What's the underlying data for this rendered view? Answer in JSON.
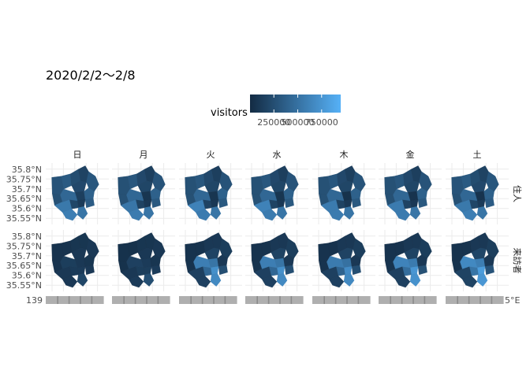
{
  "chart_data": {
    "type": "heatmap",
    "subtype": "faceted choropleth map",
    "title": "2020/2/2～2/8",
    "legend": {
      "title": "visitors",
      "position": "top",
      "breaks": [
        250000,
        500000,
        750000
      ],
      "break_labels": [
        "250000",
        "500000",
        "750000"
      ],
      "range": [
        0,
        950000
      ],
      "low_color": "#132B43",
      "high_color": "#56B1F7"
    },
    "columns": [
      "日",
      "月",
      "火",
      "水",
      "木",
      "金",
      "土"
    ],
    "rows": [
      "住人",
      "来訪者"
    ],
    "y_ticks": [
      "35.8°N",
      "35.75°N",
      "35.7°N",
      "35.65°N",
      "35.6°N",
      "35.55°N"
    ],
    "x_tick_first": "139",
    "x_tick_last": "5°E",
    "grid": true,
    "panels": {
      "住人": {
        "日": [
          0.3,
          0.35,
          0.25,
          0.18,
          0.32,
          0.22,
          0.15,
          0.4,
          0.12,
          0.2,
          0.28,
          0.58,
          0.45,
          0.36,
          0.55,
          0.62
        ],
        "月": [
          0.28,
          0.33,
          0.22,
          0.15,
          0.3,
          0.2,
          0.08,
          0.4,
          0.1,
          0.18,
          0.28,
          0.56,
          0.45,
          0.34,
          0.55,
          0.6
        ],
        "火": [
          0.28,
          0.33,
          0.22,
          0.15,
          0.3,
          0.2,
          0.08,
          0.4,
          0.1,
          0.18,
          0.28,
          0.65,
          0.45,
          0.34,
          0.55,
          0.6
        ],
        "水": [
          0.28,
          0.33,
          0.22,
          0.15,
          0.3,
          0.2,
          0.08,
          0.4,
          0.1,
          0.18,
          0.28,
          0.65,
          0.45,
          0.34,
          0.55,
          0.6
        ],
        "木": [
          0.28,
          0.33,
          0.22,
          0.15,
          0.3,
          0.2,
          0.05,
          0.4,
          0.1,
          0.18,
          0.28,
          0.6,
          0.45,
          0.34,
          0.55,
          0.6
        ],
        "金": [
          0.28,
          0.33,
          0.22,
          0.15,
          0.3,
          0.2,
          0.06,
          0.4,
          0.1,
          0.18,
          0.28,
          0.6,
          0.45,
          0.34,
          0.55,
          0.6
        ],
        "土": [
          0.3,
          0.35,
          0.25,
          0.18,
          0.32,
          0.22,
          0.06,
          0.4,
          0.12,
          0.2,
          0.28,
          0.58,
          0.45,
          0.36,
          0.55,
          0.62
        ]
      },
      "来訪者": {
        "日": [
          0.06,
          0.06,
          0.08,
          0.08,
          0.1,
          0.1,
          0.1,
          0.08,
          0.12,
          0.12,
          0.06,
          0.1,
          0.14,
          0.1,
          0.2,
          0.1
        ],
        "月": [
          0.05,
          0.05,
          0.08,
          0.08,
          0.1,
          0.1,
          0.12,
          0.08,
          0.14,
          0.14,
          0.05,
          0.1,
          0.16,
          0.12,
          0.26,
          0.12
        ],
        "火": [
          0.06,
          0.06,
          0.1,
          0.1,
          0.14,
          0.18,
          0.55,
          0.1,
          0.75,
          0.45,
          0.06,
          0.16,
          0.62,
          0.26,
          0.7,
          0.16
        ],
        "水": [
          0.06,
          0.06,
          0.1,
          0.1,
          0.14,
          0.18,
          0.55,
          0.1,
          0.75,
          0.45,
          0.06,
          0.16,
          0.62,
          0.26,
          0.7,
          0.16
        ],
        "木": [
          0.06,
          0.06,
          0.1,
          0.1,
          0.14,
          0.18,
          0.52,
          0.1,
          0.72,
          0.42,
          0.06,
          0.16,
          0.6,
          0.26,
          0.7,
          0.16
        ],
        "金": [
          0.06,
          0.06,
          0.1,
          0.1,
          0.14,
          0.18,
          0.6,
          0.1,
          0.8,
          0.5,
          0.06,
          0.16,
          0.66,
          0.28,
          0.76,
          0.16
        ],
        "土": [
          0.06,
          0.06,
          0.1,
          0.1,
          0.14,
          0.2,
          0.62,
          0.1,
          0.85,
          0.55,
          0.06,
          0.18,
          0.7,
          0.3,
          0.8,
          0.18
        ]
      }
    }
  }
}
